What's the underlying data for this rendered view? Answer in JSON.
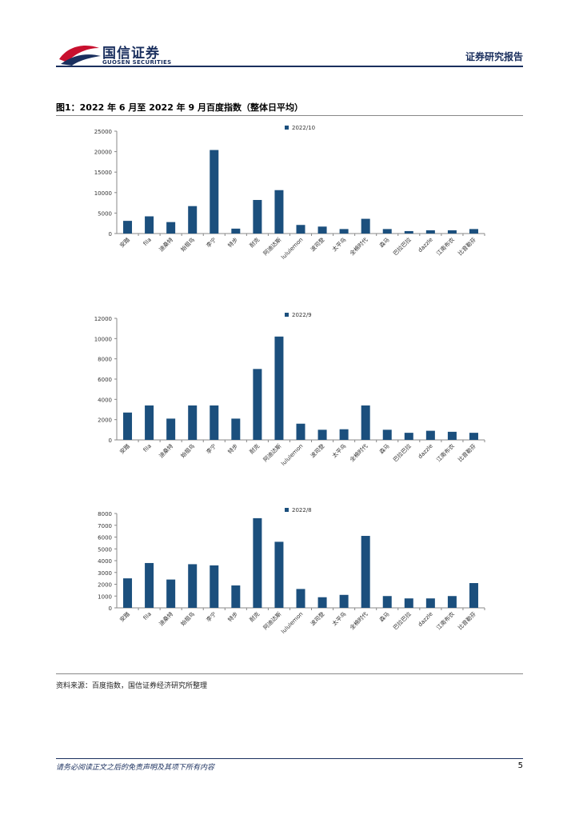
{
  "header": {
    "brand_cn": "国信证券",
    "brand_en": "GUOSEN SECURITIES",
    "report_type": "证券研究报告"
  },
  "figure": {
    "title": "图1：2022 年 6 月至 2022 年 9 月百度指数（整体日平均）",
    "source": "资料来源：百度指数，国信证券经济研究所整理"
  },
  "colors": {
    "bar": "#1b4f7d",
    "brand": "#1a2f5e",
    "logo_red": "#c8102e"
  },
  "chart_data": [
    {
      "type": "bar",
      "title": "",
      "legend": "2022/10",
      "categories": [
        "安踏",
        "fila",
        "迪桑特",
        "始祖鸟",
        "李宁",
        "特步",
        "耐克",
        "阿迪达斯",
        "lululemon",
        "波司登",
        "太平鸟",
        "全棉时代",
        "森马",
        "巴拉巴拉",
        "dazzle",
        "江南布衣",
        "比音勒芬"
      ],
      "values": [
        3100,
        4200,
        2800,
        6700,
        20400,
        1200,
        8200,
        10600,
        2100,
        1700,
        1100,
        3600,
        1100,
        600,
        800,
        800,
        1100
      ],
      "yticks": [
        0,
        5000,
        10000,
        15000,
        20000,
        25000
      ],
      "ylim": [
        0,
        25000
      ]
    },
    {
      "type": "bar",
      "title": "",
      "legend": "2022/9",
      "categories": [
        "安踏",
        "fila",
        "迪桑特",
        "始祖鸟",
        "李宁",
        "特步",
        "耐克",
        "阿迪达斯",
        "lululemon",
        "波司登",
        "太平鸟",
        "全棉时代",
        "森马",
        "巴拉巴拉",
        "dazzle",
        "江南布衣",
        "比音勒芬"
      ],
      "values": [
        2700,
        3400,
        2100,
        3400,
        3400,
        2100,
        7000,
        10200,
        1600,
        1000,
        1050,
        3400,
        1000,
        700,
        900,
        800,
        700
      ],
      "yticks": [
        0,
        2000,
        4000,
        6000,
        8000,
        10000,
        12000
      ],
      "ylim": [
        0,
        12000
      ]
    },
    {
      "type": "bar",
      "title": "",
      "legend": "2022/8",
      "categories": [
        "安踏",
        "fila",
        "迪桑特",
        "始祖鸟",
        "李宁",
        "特步",
        "耐克",
        "阿迪达斯",
        "lululemon",
        "波司登",
        "太平鸟",
        "全棉时代",
        "森马",
        "巴拉巴拉",
        "dazzle",
        "江南布衣",
        "比音勒芬"
      ],
      "values": [
        2500,
        3800,
        2400,
        3700,
        3600,
        1900,
        7600,
        5600,
        1600,
        900,
        1100,
        6100,
        1000,
        800,
        800,
        1000,
        2100
      ],
      "yticks": [
        0,
        1000,
        2000,
        3000,
        4000,
        5000,
        6000,
        7000,
        8000
      ],
      "ylim": [
        0,
        8000
      ]
    }
  ],
  "footer": {
    "disclaimer": "请务必阅读正文之后的免责声明及其项下所有内容",
    "page_number": "5"
  }
}
